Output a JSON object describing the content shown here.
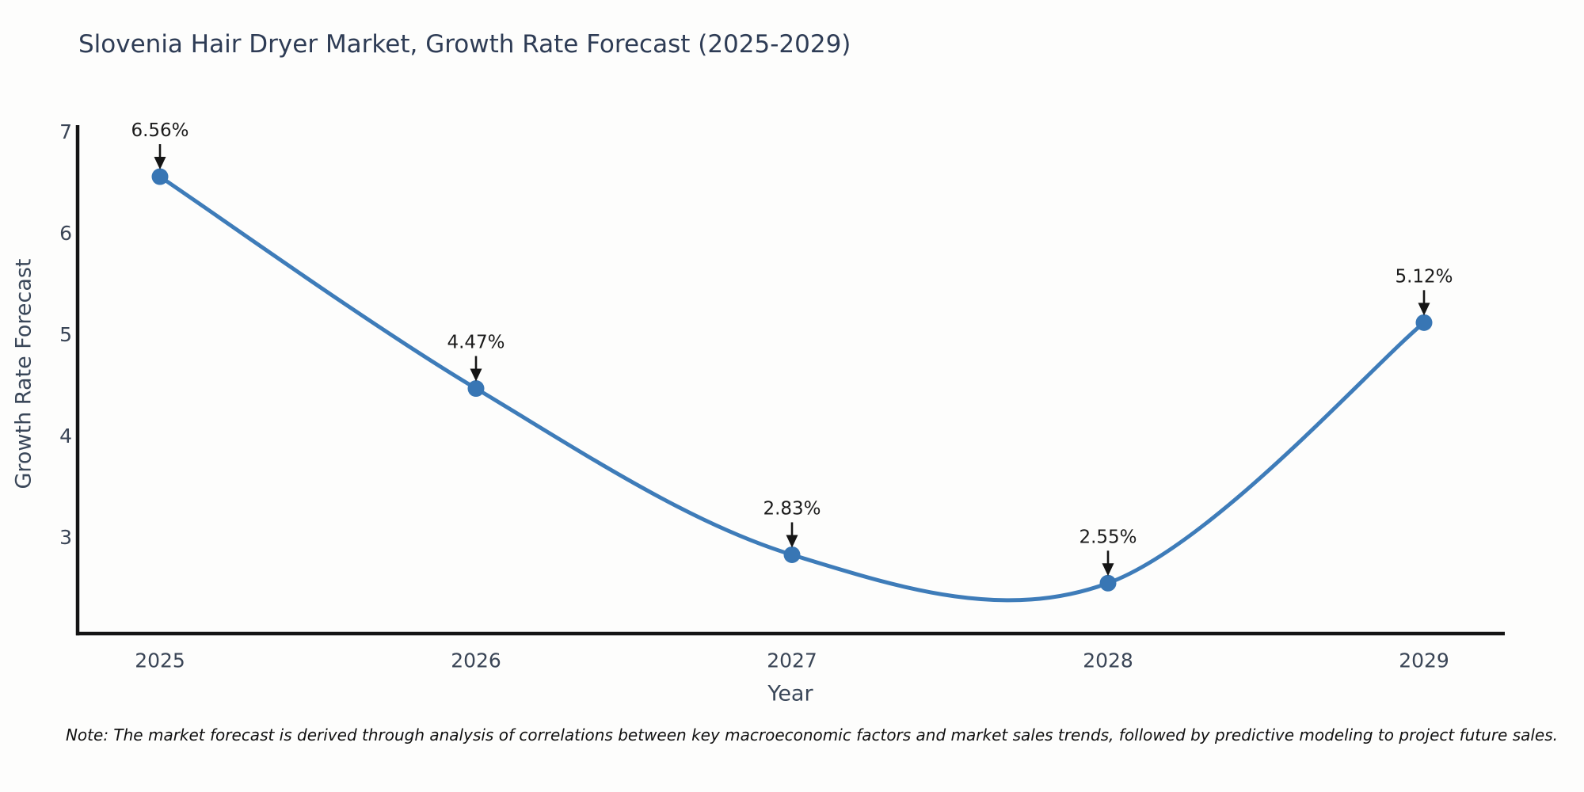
{
  "title": "Slovenia Hair Dryer Market, Growth Rate Forecast (2025-2029)",
  "note": "Note: The market forecast is derived through analysis of correlations between key macroeconomic factors and market sales trends, followed by predictive modeling to project future sales.",
  "chart_data": {
    "type": "line",
    "title": "Slovenia Hair Dryer Market, Growth Rate Forecast (2025-2029)",
    "xlabel": "Year",
    "ylabel": "Growth Rate Forecast",
    "categories": [
      "2025",
      "2026",
      "2027",
      "2028",
      "2029"
    ],
    "values": [
      6.56,
      4.47,
      2.83,
      2.55,
      5.12
    ],
    "point_labels": [
      "6.56%",
      "4.47%",
      "2.83%",
      "2.55%",
      "5.12%"
    ],
    "yticks": [
      3,
      4,
      5,
      6,
      7
    ],
    "ylim": [
      2.05,
      7.07
    ],
    "grid": false,
    "legend": null,
    "smooth_curve": true,
    "annotations": "value labels with downward arrows above each point",
    "colors": {
      "line": "#3e7cb9",
      "marker": "#3876b4",
      "spine": "#141414",
      "arrow": "#151515",
      "annotation_text": "#1b1b1b",
      "tick_text": "#3a4556",
      "title_text": "#2e3c55",
      "background": "#fdfdfc"
    }
  }
}
